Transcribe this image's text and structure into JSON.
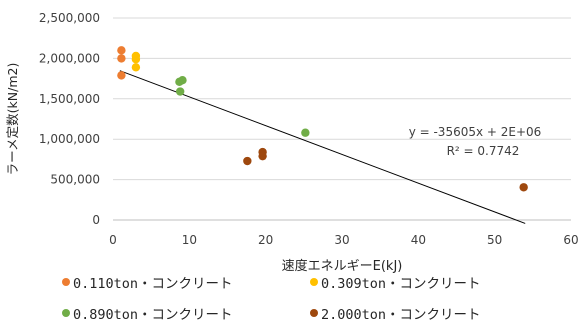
{
  "chart_data": {
    "type": "scatter",
    "xlabel": "速度エネルギーE(kJ)",
    "ylabel": "ラーメ定数(kN/m2)",
    "xlim": [
      0,
      60
    ],
    "ylim": [
      0,
      2500000
    ],
    "x_ticks": [
      0,
      10,
      20,
      30,
      40,
      50,
      60
    ],
    "y_ticks": [
      0,
      500000,
      1000000,
      1500000,
      2000000,
      2500000
    ],
    "x_tick_labels": [
      "0",
      "10",
      "20",
      "30",
      "40",
      "50",
      "60"
    ],
    "y_tick_labels": [
      "0",
      "500,000",
      "1,000,000",
      "1,500,000",
      "2,000,000",
      "2,500,000"
    ],
    "grid": "horizontal",
    "legend_position": "bottom",
    "series": [
      {
        "name": "0.110ton・コンクリート",
        "color": "#ed7d31",
        "points": [
          [
            1.1,
            2100000
          ],
          [
            1.1,
            2000000
          ],
          [
            1.1,
            1790000
          ]
        ]
      },
      {
        "name": "0.309ton・コンクリート",
        "color": "#ffc000",
        "points": [
          [
            3.0,
            2030000
          ],
          [
            3.0,
            1990000
          ],
          [
            3.0,
            1890000
          ]
        ]
      },
      {
        "name": "0.890ton・コンクリート",
        "color": "#70ad47",
        "points": [
          [
            8.7,
            1710000
          ],
          [
            9.1,
            1730000
          ],
          [
            8.8,
            1590000
          ],
          [
            25.2,
            1080000
          ]
        ]
      },
      {
        "name": "2.000ton・コンクリート",
        "color": "#9e480e",
        "points": [
          [
            17.6,
            730000
          ],
          [
            19.6,
            840000
          ],
          [
            19.6,
            790000
          ],
          [
            53.8,
            405000
          ]
        ]
      }
    ],
    "trendline": {
      "slope": -35605,
      "intercept": 1880000,
      "x_range": [
        0.9,
        54
      ],
      "equation_label": "y = -35605x + 2E+06",
      "r2_label": "R² = 0.7742"
    }
  }
}
